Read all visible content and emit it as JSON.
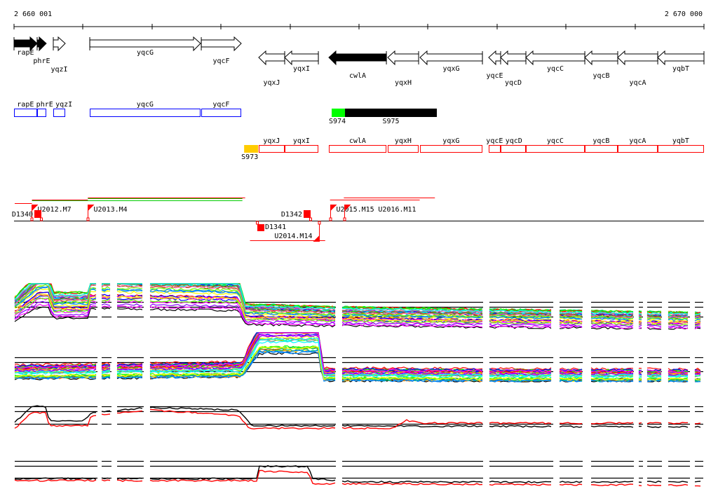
{
  "ruler": {
    "start_label": "2 660 001",
    "end_label": "2 670 000",
    "start": 2660000,
    "end": 2670000,
    "tick_step": 1000
  },
  "colors": {
    "forward_box": "#0000ff",
    "reverse_box": "#ff0000",
    "S973": "#ffcc00",
    "S974": "#00ff00",
    "S975": "#000000",
    "tu_red": "#ff0000",
    "tu_green": "#00cc00"
  },
  "genes_forward": [
    {
      "name": "rapE",
      "start": 2660000,
      "end": 2660335,
      "essential": true
    },
    {
      "name": "phrE",
      "start": 2660335,
      "end": 2660467,
      "essential": true
    },
    {
      "name": "yqzI",
      "start": 2660569,
      "end": 2660742,
      "essential": false
    },
    {
      "name": "yqcG",
      "start": 2661098,
      "end": 2662703,
      "essential": false
    },
    {
      "name": "yqcF",
      "start": 2662714,
      "end": 2663293,
      "essential": false
    }
  ],
  "genes_reverse": [
    {
      "name": "yqxJ",
      "start": 2663547,
      "end": 2663923,
      "essential": false
    },
    {
      "name": "yqxI",
      "start": 2663923,
      "end": 2664411,
      "essential": false
    },
    {
      "name": "cwlA",
      "start": 2664563,
      "end": 2665397,
      "essential": true
    },
    {
      "name": "yqxH",
      "start": 2665417,
      "end": 2665864,
      "essential": false
    },
    {
      "name": "yqxG",
      "start": 2665884,
      "end": 2666789,
      "essential": false
    },
    {
      "name": "yqcE",
      "start": 2666880,
      "end": 2667053,
      "essential": false
    },
    {
      "name": "yqcD",
      "start": 2667053,
      "end": 2667419,
      "essential": false
    },
    {
      "name": "yqcC",
      "start": 2667419,
      "end": 2668273,
      "essential": false
    },
    {
      "name": "yqcB",
      "start": 2668273,
      "end": 2668750,
      "essential": false
    },
    {
      "name": "yqcA",
      "start": 2668750,
      "end": 2669330,
      "essential": false
    },
    {
      "name": "yqbT",
      "start": 2669330,
      "end": 2670000,
      "essential": false
    }
  ],
  "segments_features": [
    {
      "name": "S973",
      "start": 2663335,
      "end": 2663538,
      "color": "#ffcc00",
      "strand": "-"
    },
    {
      "name": "S974",
      "start": 2664604,
      "end": 2664797,
      "color": "#00ff00",
      "strand": "+"
    },
    {
      "name": "S975",
      "start": 2664797,
      "end": 2666128,
      "color": "#000000",
      "strand": "+"
    }
  ],
  "transcription_units": [
    {
      "start": 2660010,
      "end": 2660260,
      "color": "#ff0000",
      "level": 0
    },
    {
      "start": 2660260,
      "end": 2661070,
      "color": "#ff0000",
      "level": 1
    },
    {
      "start": 2661070,
      "end": 2663350,
      "color": "#ff0000",
      "level": 2
    },
    {
      "start": 2661070,
      "end": 2663310,
      "color": "#00cc00",
      "level": 3
    },
    {
      "start": 2660260,
      "end": 2663310,
      "color": "#00cc00",
      "level": 4
    },
    {
      "start": 2664580,
      "end": 2665880,
      "color": "#ff0000",
      "level": 1
    },
    {
      "start": 2664780,
      "end": 2666100,
      "color": "#ff0000",
      "level": 2
    },
    {
      "start": 2663420,
      "end": 2664510,
      "color": "#ff0000",
      "level": -1
    }
  ],
  "upshifts": [
    {
      "label": "U2012.M7",
      "pos": 2660255,
      "strand": "+"
    },
    {
      "label": "U2013.M4",
      "pos": 2661070,
      "strand": "+"
    },
    {
      "label": "U2015.M15",
      "pos": 2664580,
      "strand": "+"
    },
    {
      "label": "U2016.M11",
      "pos": 2664790,
      "strand": "+"
    },
    {
      "label": "U2014.M14",
      "pos": 2664420,
      "strand": "-"
    }
  ],
  "downshifts": [
    {
      "label": "D1340",
      "pos": 2660400,
      "strand": "+"
    },
    {
      "label": "D1341",
      "pos": 2663530,
      "strand": "-"
    },
    {
      "label": "D1342",
      "pos": 2664300,
      "strand": "+"
    }
  ],
  "expression": {
    "segments": [
      [
        2660000,
        2661220
      ],
      [
        2661260,
        2661423
      ],
      [
        2661484,
        2661890
      ],
      [
        2661961,
        2664675
      ],
      [
        2664746,
        2666809
      ],
      [
        2666880,
        2667826
      ],
      [
        2667897,
        2668252
      ],
      [
        2668354,
        2668994
      ],
      [
        2669045,
        2669126
      ],
      [
        2669167,
        2669401
      ],
      [
        2669472,
        2669807
      ],
      [
        2669858,
        2670000
      ]
    ],
    "panels": [
      {
        "name": "forward-conditions",
        "ref_levels": [
          6,
          5,
          2.8
        ],
        "profile": [
          [
            2660000,
            4.5
          ],
          [
            2660356,
            9
          ],
          [
            2660508,
            9
          ],
          [
            2660559,
            5.5
          ],
          [
            2661067,
            5.5
          ],
          [
            2661098,
            8.5
          ],
          [
            2663252,
            8
          ],
          [
            2663354,
            3.5
          ],
          [
            2664574,
            3
          ],
          [
            2670000,
            2
          ]
        ],
        "spread": 3.2,
        "lines": 34
      },
      {
        "name": "reverse-conditions",
        "ref_levels": [
          5,
          4,
          2.1
        ],
        "profile": [
          [
            2660000,
            2
          ],
          [
            2663303,
            2.5
          ],
          [
            2663557,
            8.8
          ],
          [
            2664420,
            8.8
          ],
          [
            2664471,
            1.5
          ],
          [
            2670000,
            1.3
          ]
        ],
        "spread": 2.4,
        "lines": 34
      },
      {
        "name": "forward-summary",
        "ref_levels": [
          9.5,
          7.5,
          2.8
        ],
        "series": [
          {
            "color": "#000000",
            "profile": [
              [
                2660000,
                3
              ],
              [
                2660270,
                9.5
              ],
              [
                2660450,
                9.5
              ],
              [
                2660508,
                4
              ],
              [
                2661017,
                4
              ],
              [
                2661118,
                7
              ],
              [
                2661961,
                9
              ],
              [
                2663252,
                8
              ],
              [
                2663456,
                2
              ],
              [
                2670000,
                1.5
              ]
            ]
          },
          {
            "color": "#ff0000",
            "profile": [
              [
                2660000,
                0.5
              ],
              [
                2660254,
                7
              ],
              [
                2660457,
                7
              ],
              [
                2660508,
                2
              ],
              [
                2661067,
                2
              ],
              [
                2661118,
                6
              ],
              [
                2661961,
                8
              ],
              [
                2663252,
                6
              ],
              [
                2663405,
                1
              ],
              [
                2665488,
                1
              ],
              [
                2665691,
                4
              ],
              [
                2665894,
                3
              ],
              [
                2670000,
                3
              ]
            ]
          }
        ]
      },
      {
        "name": "reverse-summary",
        "ref_levels": [
          9.5,
          7.6,
          3.3
        ],
        "series": [
          {
            "color": "#000000",
            "profile": [
              [
                2660000,
                3
              ],
              [
                2663537,
                3
              ],
              [
                2663557,
                7.5
              ],
              [
                2664268,
                7.5
              ],
              [
                2664319,
                3
              ],
              [
                2664980,
                1.8
              ],
              [
                2670000,
                1.8
              ]
            ]
          },
          {
            "color": "#ff0000",
            "profile": [
              [
                2660000,
                2.3
              ],
              [
                2663537,
                2.3
              ],
              [
                2663557,
                5.8
              ],
              [
                2664268,
                5.3
              ],
              [
                2664319,
                1.2
              ],
              [
                2670000,
                0.6
              ]
            ]
          }
        ]
      }
    ]
  }
}
